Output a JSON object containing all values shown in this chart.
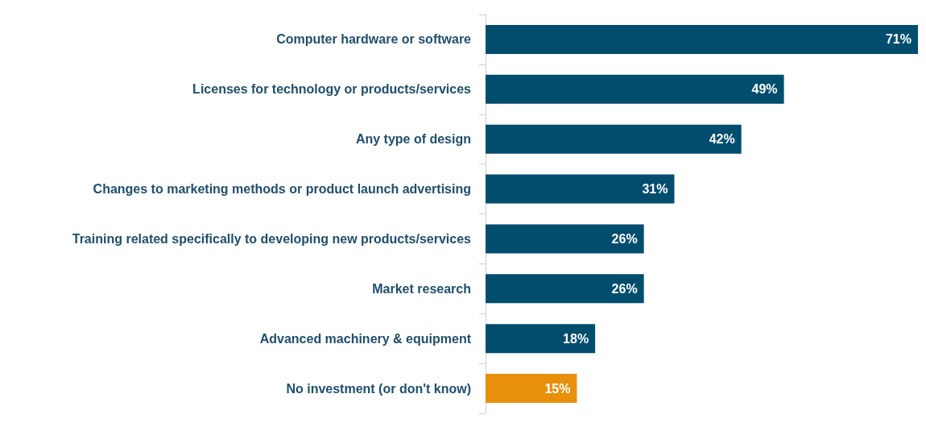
{
  "chart_data": {
    "type": "bar",
    "orientation": "horizontal",
    "categories": [
      "Computer hardware or software",
      "Licenses for technology or products/services",
      "Any type of design",
      "Changes to marketing methods or product launch advertising",
      "Training related specifically to developing new products/services",
      "Market research",
      "Advanced machinery & equipment",
      "No investment (or don't know)"
    ],
    "values": [
      71,
      49,
      42,
      31,
      26,
      26,
      18,
      15
    ],
    "colors": [
      "#004d6e",
      "#004d6e",
      "#004d6e",
      "#004d6e",
      "#004d6e",
      "#004d6e",
      "#004d6e",
      "#e8900c"
    ],
    "value_labels": [
      "71%",
      "49%",
      "42%",
      "31%",
      "26%",
      "26%",
      "18%",
      "15%"
    ]
  }
}
